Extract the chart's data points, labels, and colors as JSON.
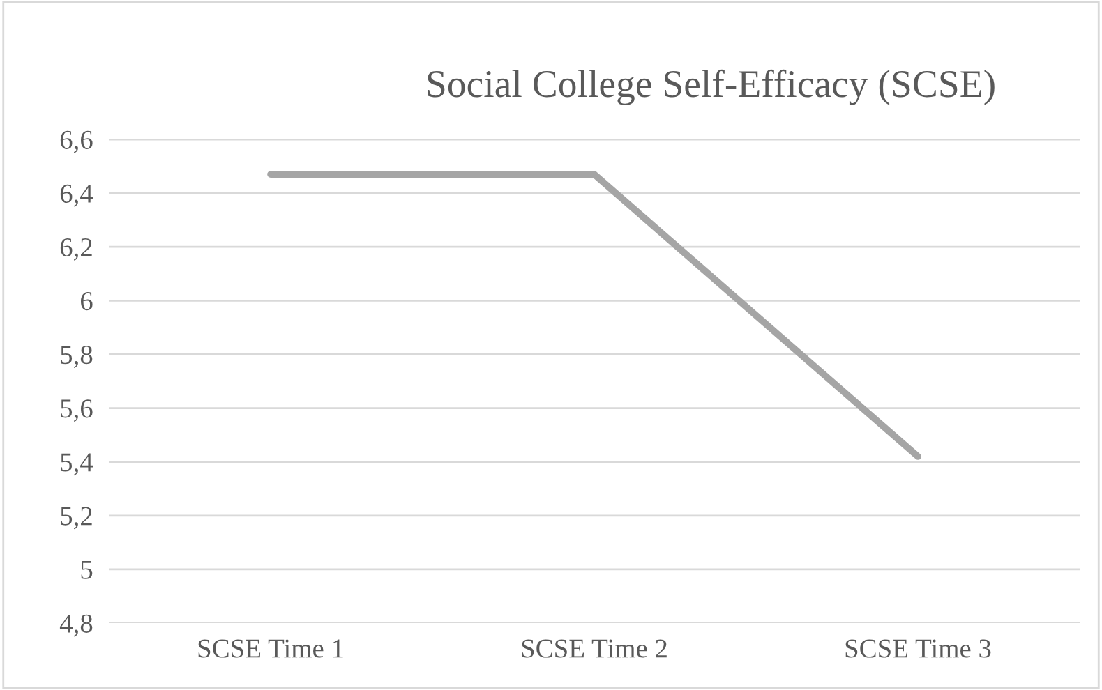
{
  "chart_data": {
    "type": "line",
    "title": "Social College Self-Efficacy (SCSE)",
    "categories": [
      "SCSE Time 1",
      "SCSE Time 2",
      "SCSE Time 3"
    ],
    "series": [
      {
        "color": "#a5a5a5",
        "values": [
          6.47,
          6.47,
          5.42
        ]
      }
    ],
    "ylim": [
      4.8,
      6.6
    ],
    "yticks": [
      {
        "value": 4.8,
        "label": "4,8"
      },
      {
        "value": 5.0,
        "label": "5"
      },
      {
        "value": 5.2,
        "label": "5,2"
      },
      {
        "value": 5.4,
        "label": "5,4"
      },
      {
        "value": 5.6,
        "label": "5,6"
      },
      {
        "value": 5.8,
        "label": "5,8"
      },
      {
        "value": 6.0,
        "label": "6"
      },
      {
        "value": 6.2,
        "label": "6,2"
      },
      {
        "value": 6.4,
        "label": "6,4"
      },
      {
        "value": 6.6,
        "label": "6,6"
      }
    ],
    "grid": "y",
    "marker": "none",
    "line_style": "solid"
  }
}
